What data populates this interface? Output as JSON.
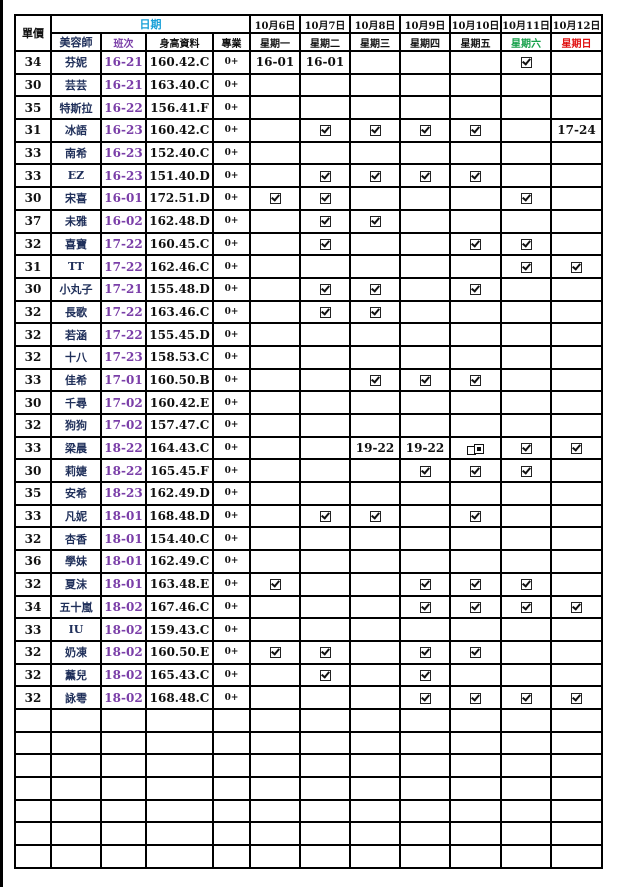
{
  "header": {
    "price": "單價",
    "date_group": "日期",
    "columns": [
      "美容師",
      "班次",
      "身高資料",
      "專業"
    ],
    "dates": [
      "10月6日",
      "10月7日",
      "10月8日",
      "10月9日",
      "10月10日",
      "10月11日",
      "10月12日"
    ],
    "weekdays": [
      "星期一",
      "星期二",
      "星期三",
      "星期四",
      "星期五",
      "星期六",
      "星期日"
    ]
  },
  "colors": {
    "date_header": "#1aa0d8",
    "saturday": "#16a04a",
    "sunday": "#e01010",
    "shift": "#7a3ea8",
    "name": "#1f2f5a"
  },
  "legend": {
    "check": "checkbox-checked-icon",
    "copy": "copy-icon"
  },
  "rows": [
    {
      "price": "34",
      "name": "芬妮",
      "shift": "16-21",
      "body": "160.42.C",
      "prof": "0+",
      "days": [
        "16-01",
        "16-01",
        "",
        "",
        "",
        "check",
        ""
      ]
    },
    {
      "price": "30",
      "name": "芸芸",
      "shift": "16-21",
      "body": "163.40.C",
      "prof": "0+",
      "days": [
        "",
        "",
        "",
        "",
        "",
        "",
        ""
      ]
    },
    {
      "price": "35",
      "name": "特斯拉",
      "shift": "16-22",
      "body": "156.41.F",
      "prof": "0+",
      "days": [
        "",
        "",
        "",
        "",
        "",
        "",
        ""
      ]
    },
    {
      "price": "31",
      "name": "冰語",
      "shift": "16-23",
      "body": "160.42.C",
      "prof": "0+",
      "days": [
        "",
        "check",
        "check",
        "check",
        "check",
        "",
        "17-24"
      ]
    },
    {
      "price": "33",
      "name": "南希",
      "shift": "16-23",
      "body": "152.40.C",
      "prof": "0+",
      "days": [
        "",
        "",
        "",
        "",
        "",
        "",
        ""
      ]
    },
    {
      "price": "33",
      "name": "EZ",
      "shift": "16-23",
      "body": "151.40.D",
      "prof": "0+",
      "days": [
        "",
        "check",
        "check",
        "check",
        "check",
        "",
        ""
      ]
    },
    {
      "price": "30",
      "name": "宋喜",
      "shift": "16-01",
      "body": "172.51.D",
      "prof": "0+",
      "days": [
        "check",
        "check",
        "",
        "",
        "",
        "check",
        ""
      ]
    },
    {
      "price": "37",
      "name": "未雅",
      "shift": "16-02",
      "body": "162.48.D",
      "prof": "0+",
      "days": [
        "",
        "check",
        "check",
        "",
        "",
        "",
        ""
      ]
    },
    {
      "price": "32",
      "name": "喜寶",
      "shift": "17-22",
      "body": "160.45.C",
      "prof": "0+",
      "days": [
        "",
        "check",
        "",
        "",
        "check",
        "check",
        ""
      ]
    },
    {
      "price": "31",
      "name": "TT",
      "shift": "17-22",
      "body": "162.46.C",
      "prof": "0+",
      "days": [
        "",
        "",
        "",
        "",
        "",
        "check",
        "check"
      ]
    },
    {
      "price": "30",
      "name": "小丸子",
      "shift": "17-21",
      "body": "155.48.D",
      "prof": "0+",
      "days": [
        "",
        "check",
        "check",
        "",
        "check",
        "",
        ""
      ]
    },
    {
      "price": "32",
      "name": "長歌",
      "shift": "17-22",
      "body": "163.46.C",
      "prof": "0+",
      "days": [
        "",
        "check",
        "check",
        "",
        "",
        "",
        ""
      ]
    },
    {
      "price": "32",
      "name": "若涵",
      "shift": "17-22",
      "body": "155.45.D",
      "prof": "0+",
      "days": [
        "",
        "",
        "",
        "",
        "",
        "",
        ""
      ]
    },
    {
      "price": "32",
      "name": "十八",
      "shift": "17-23",
      "body": "158.53.C",
      "prof": "0+",
      "days": [
        "",
        "",
        "",
        "",
        "",
        "",
        ""
      ]
    },
    {
      "price": "33",
      "name": "佳希",
      "shift": "17-01",
      "body": "160.50.B",
      "prof": "0+",
      "days": [
        "",
        "",
        "check",
        "check",
        "check",
        "",
        ""
      ]
    },
    {
      "price": "30",
      "name": "千尋",
      "shift": "17-02",
      "body": "160.42.E",
      "prof": "0+",
      "days": [
        "",
        "",
        "",
        "",
        "",
        "",
        ""
      ]
    },
    {
      "price": "32",
      "name": "狗狗",
      "shift": "17-02",
      "body": "157.47.C",
      "prof": "0+",
      "days": [
        "",
        "",
        "",
        "",
        "",
        "",
        ""
      ]
    },
    {
      "price": "33",
      "name": "梁晨",
      "shift": "18-22",
      "body": "164.43.C",
      "prof": "0+",
      "days": [
        "",
        "",
        "19-22",
        "19-22",
        "copy",
        "check",
        "check"
      ]
    },
    {
      "price": "30",
      "name": "莉婕",
      "shift": "18-22",
      "body": "165.45.F",
      "prof": "0+",
      "days": [
        "",
        "",
        "",
        "check",
        "check",
        "check",
        ""
      ]
    },
    {
      "price": "35",
      "name": "安希",
      "shift": "18-23",
      "body": "162.49.D",
      "prof": "0+",
      "days": [
        "",
        "",
        "",
        "",
        "",
        "",
        ""
      ]
    },
    {
      "price": "33",
      "name": "凡妮",
      "shift": "18-01",
      "body": "168.48.D",
      "prof": "0+",
      "days": [
        "",
        "check",
        "check",
        "",
        "check",
        "",
        ""
      ]
    },
    {
      "price": "32",
      "name": "杏香",
      "shift": "18-01",
      "body": "154.40.C",
      "prof": "0+",
      "days": [
        "",
        "",
        "",
        "",
        "",
        "",
        ""
      ]
    },
    {
      "price": "36",
      "name": "學妹",
      "shift": "18-01",
      "body": "162.49.C",
      "prof": "0+",
      "days": [
        "",
        "",
        "",
        "",
        "",
        "",
        ""
      ]
    },
    {
      "price": "32",
      "name": "夏沫",
      "shift": "18-01",
      "body": "163.48.E",
      "prof": "0+",
      "days": [
        "check",
        "",
        "",
        "check",
        "check",
        "check",
        ""
      ]
    },
    {
      "price": "34",
      "name": "五十嵐",
      "shift": "18-02",
      "body": "167.46.C",
      "prof": "0+",
      "days": [
        "",
        "",
        "",
        "check",
        "check",
        "check",
        "check"
      ]
    },
    {
      "price": "33",
      "name": "IU",
      "shift": "18-02",
      "body": "159.43.C",
      "prof": "0+",
      "days": [
        "",
        "",
        "",
        "",
        "",
        "",
        ""
      ]
    },
    {
      "price": "32",
      "name": "奶凍",
      "shift": "18-02",
      "body": "160.50.E",
      "prof": "0+",
      "days": [
        "check",
        "check",
        "",
        "check",
        "check",
        "",
        ""
      ]
    },
    {
      "price": "32",
      "name": "薰兒",
      "shift": "18-02",
      "body": "165.43.C",
      "prof": "0+",
      "days": [
        "",
        "check",
        "",
        "check",
        "",
        "",
        ""
      ]
    },
    {
      "price": "32",
      "name": "詠雩",
      "shift": "18-02",
      "body": "168.48.C",
      "prof": "0+",
      "days": [
        "",
        "",
        "",
        "check",
        "check",
        "check",
        "check"
      ]
    }
  ],
  "empty_rows": 7
}
